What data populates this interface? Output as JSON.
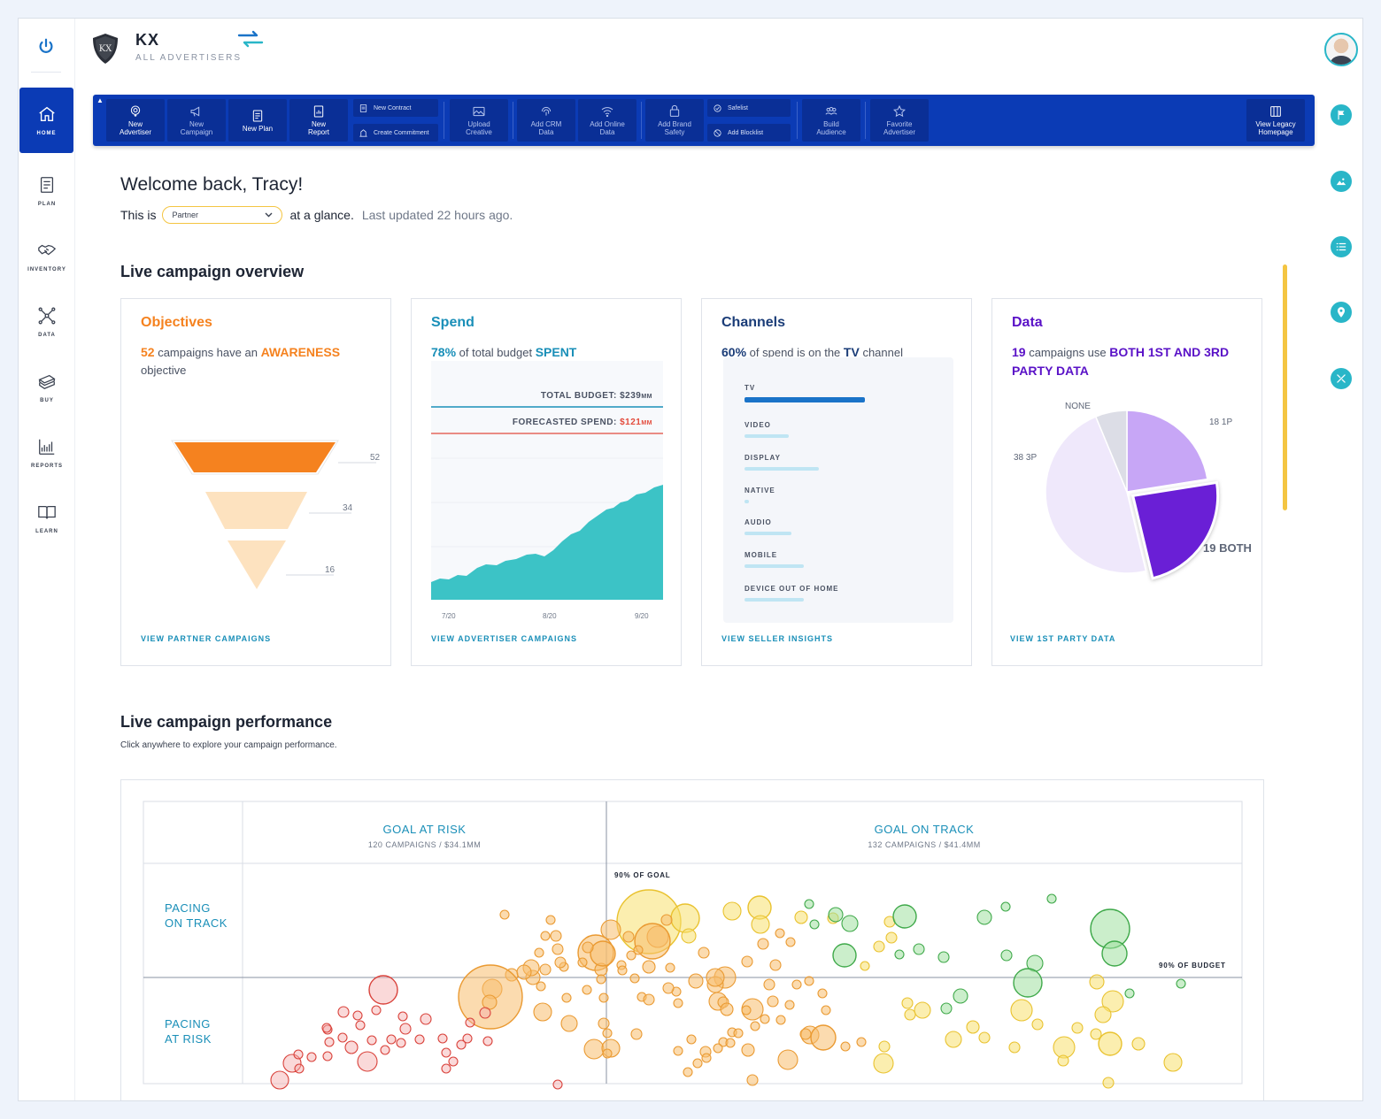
{
  "brand": {
    "name": "KX",
    "subtitle": "ALL ADVERTISERS",
    "logo_text": "KX"
  },
  "nav": [
    {
      "label": "HOME",
      "icon": "home-icon",
      "active": true
    },
    {
      "label": "PLAN",
      "icon": "plan-icon"
    },
    {
      "label": "INVENTORY",
      "icon": "handshake-icon"
    },
    {
      "label": "DATA",
      "icon": "network-icon"
    },
    {
      "label": "BUY",
      "icon": "money-icon"
    },
    {
      "label": "REPORTS",
      "icon": "reports-icon"
    },
    {
      "label": "LEARN",
      "icon": "book-icon"
    }
  ],
  "toolbar": {
    "new_advertiser": "New Advertiser",
    "new_campaign": "New Campaign",
    "new_plan": "New Plan",
    "new_report": "New Report",
    "new_contract": "New Contract",
    "create_commitment": "Create Commitment",
    "upload_creative": "Upload Creative",
    "add_crm_data": "Add CRM Data",
    "add_online_data": "Add Online Data",
    "add_brand_safety": "Add Brand Safety",
    "safelist": "Safelist",
    "add_blocklist": "Add Blocklist",
    "build_audience": "Build Audience",
    "favorite_advertiser": "Favorite Advertiser",
    "view_legacy_homepage": "View Legacy Homepage"
  },
  "welcome": {
    "greeting": "Welcome back, Tracy!",
    "prefix": "This is",
    "select_value": "Partner",
    "suffix": "at a glance.",
    "updated": "Last updated 22 hours ago."
  },
  "overview": {
    "title": "Live campaign overview",
    "objectives": {
      "title": "Objectives",
      "count": "52",
      "text_mid": "campaigns have an",
      "highlight": "AWARENESS",
      "text_end": "objective",
      "link": "VIEW PARTNER CAMPAIGNS",
      "funnel_values": [
        "52",
        "34",
        "16"
      ]
    },
    "spend": {
      "title": "Spend",
      "percent": "78%",
      "text_mid": "of total budget",
      "highlight": "SPENT",
      "total_budget_label": "TOTAL BUDGET: $239",
      "total_budget_unit": "MM",
      "forecast_label": "FORECASTED SPEND: ",
      "forecast_value": "$121",
      "forecast_unit": "MM",
      "x_ticks": [
        "7/20",
        "8/20",
        "9/20"
      ],
      "link": "VIEW ADVERTISER CAMPAIGNS"
    },
    "channels": {
      "title": "Channels",
      "percent": "60%",
      "text_mid": "of spend is on the",
      "highlight": "TV",
      "text_end": "channel",
      "rows": [
        {
          "name": "TV",
          "share": 1.0
        },
        {
          "name": "VIDEO",
          "share": 0.37
        },
        {
          "name": "DISPLAY",
          "share": 0.62
        },
        {
          "name": "NATIVE",
          "share": 0.04
        },
        {
          "name": "AUDIO",
          "share": 0.39
        },
        {
          "name": "MOBILE",
          "share": 0.49
        },
        {
          "name": "DEVICE OUT OF HOME",
          "share": 0.49
        }
      ],
      "link": "VIEW SELLER INSIGHTS"
    },
    "data": {
      "title": "Data",
      "count": "19",
      "text_mid": "campaigns use",
      "highlight": "BOTH 1ST AND 3RD PARTY DATA",
      "slices": [
        {
          "label": "18 1P",
          "value": 18,
          "color": "#c7a6f6"
        },
        {
          "label": "19 BOTH",
          "value": 19,
          "color": "#6a1fd6"
        },
        {
          "label": "38 3P",
          "value": 38,
          "color": "#efe8fb"
        },
        {
          "label": "NONE",
          "value": 5,
          "color": "#dcdde6"
        }
      ],
      "link": "VIEW 1ST PARTY DATA"
    }
  },
  "performance": {
    "title": "Live campaign performance",
    "subtitle": "Click anywhere to explore your campaign performance.",
    "col_at_risk": "GOAL AT RISK",
    "col_at_risk_sub": "120 CAMPAIGNS / $34.1MM",
    "col_on_track": "GOAL ON TRACK",
    "col_on_track_sub": "132 CAMPAIGNS / $41.4MM",
    "row_on_track": [
      "PACING",
      "ON TRACK"
    ],
    "row_at_risk": [
      "PACING",
      "AT RISK"
    ],
    "goal_marker": "90% OF GOAL",
    "budget_marker": "90% OF BUDGET"
  },
  "colors": {
    "primary": "#0b3bb5",
    "teal": "#29b6c8",
    "orange": "#f5821f",
    "purple": "#6a1fd6",
    "link": "#1a8fb8"
  }
}
